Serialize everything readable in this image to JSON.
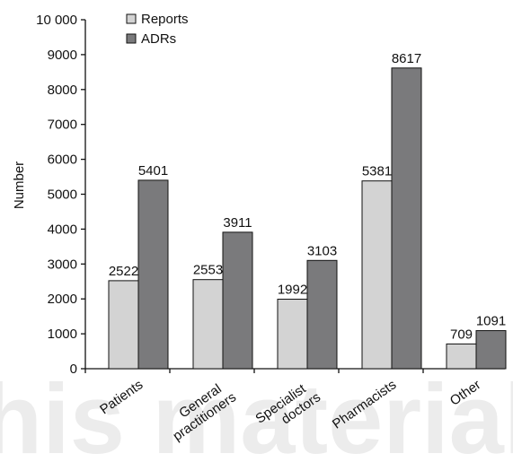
{
  "chart_data": {
    "type": "bar",
    "categories": [
      [
        "Patients"
      ],
      [
        "General",
        "practitioners"
      ],
      [
        "Specialist",
        "doctors"
      ],
      [
        "Pharmacists"
      ],
      [
        "Other"
      ]
    ],
    "series": [
      {
        "name": "Reports",
        "values": [
          2522,
          2553,
          1992,
          5381,
          709
        ],
        "color": "#d3d3d3"
      },
      {
        "name": "ADRs",
        "values": [
          5401,
          3911,
          3103,
          8617,
          1091
        ],
        "color": "#7a7a7c"
      }
    ],
    "ylabel": "Number",
    "xlabel": "",
    "ylim": [
      0,
      10000
    ],
    "yticks": [
      0,
      1000,
      2000,
      3000,
      4000,
      5000,
      6000,
      7000,
      8000,
      9000,
      10000
    ],
    "ytick_labels": [
      "0",
      "1000",
      "2000",
      "3000",
      "4000",
      "5000",
      "6000",
      "7000",
      "8000",
      "9000",
      "10 000"
    ],
    "legend_position": "top-left",
    "grid": false
  },
  "watermark_text": "his material"
}
